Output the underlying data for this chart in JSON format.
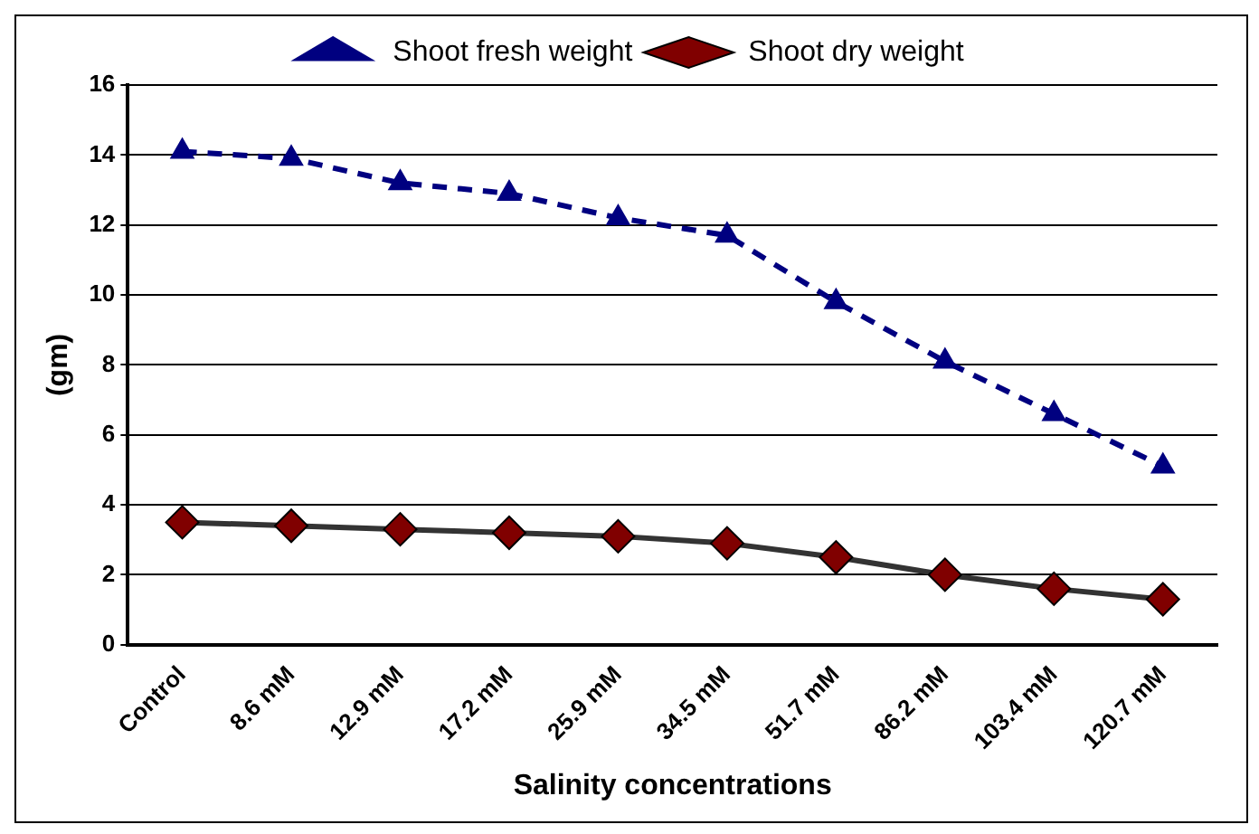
{
  "chart_data": {
    "type": "line",
    "xlabel": "Salinity concentrations",
    "ylabel": "(gm)",
    "categories": [
      "Control",
      "8.6 mM",
      "12.9 mM",
      "17.2 mM",
      "25.9 mM",
      "34.5 mM",
      "51.7 mM",
      "86.2 mM",
      "103.4 mM",
      "120.7 mM"
    ],
    "series": [
      {
        "name": "Shoot fresh weight",
        "color": "#000080",
        "marker": "triangle",
        "line_style": "dashed",
        "values": [
          14.1,
          13.9,
          13.2,
          12.9,
          12.2,
          11.7,
          9.8,
          8.1,
          6.6,
          5.1
        ]
      },
      {
        "name": "Shoot dry weight",
        "color": "#800000",
        "marker": "diamond",
        "line_style": "solid",
        "values": [
          3.5,
          3.4,
          3.3,
          3.2,
          3.1,
          2.9,
          2.5,
          2.0,
          1.6,
          1.3
        ]
      }
    ],
    "ylim": [
      0,
      16
    ],
    "yticks": [
      0,
      2,
      4,
      6,
      8,
      10,
      12,
      14,
      16
    ],
    "grid": "y",
    "legend": "top"
  }
}
